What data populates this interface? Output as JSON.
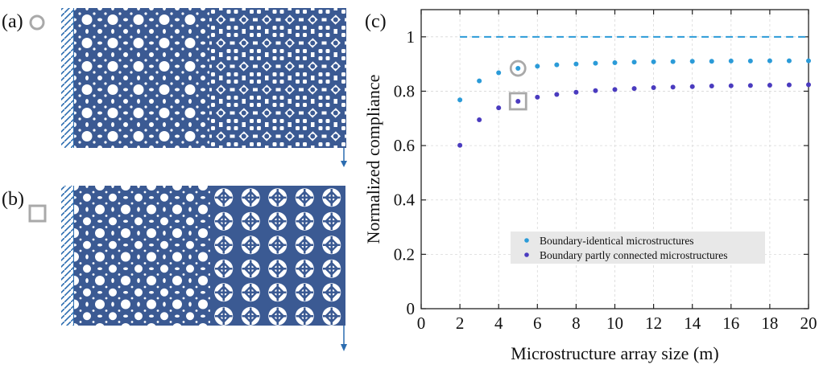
{
  "panels": {
    "a": {
      "label": "(a)",
      "marker": "circle"
    },
    "b": {
      "label": "(b)",
      "marker": "square"
    },
    "c": {
      "label": "(c)"
    }
  },
  "colors": {
    "structure": "#3b5a93",
    "series1": "#2b9bd8",
    "series2": "#4a3bbf",
    "reference": "#2b9bd8",
    "highlight": "#a9a9a9",
    "legend_bg": "#e8e8e8"
  },
  "chart_data": {
    "type": "scatter",
    "xlabel": "Microstructure array size (m)",
    "ylabel": "Normalized compliance",
    "xlim": [
      0,
      20
    ],
    "ylim": [
      0,
      1.1
    ],
    "xticks": [
      0,
      2,
      4,
      6,
      8,
      10,
      12,
      14,
      16,
      18,
      20
    ],
    "yticks": [
      0,
      0.2,
      0.4,
      0.6,
      0.8,
      1
    ],
    "xtick_labels": [
      "0",
      "2",
      "4",
      "6",
      "8",
      "10",
      "12",
      "14",
      "16",
      "18",
      "20"
    ],
    "ytick_labels": [
      "0",
      "0.2",
      "0.4",
      "0.6",
      "0.8",
      "1"
    ],
    "grid": true,
    "legend_position": "lower-right",
    "reference_line": {
      "y": 1.0,
      "x_range": [
        2,
        20
      ],
      "style": "dashed"
    },
    "highlight": {
      "x": 5,
      "circle_series": 0,
      "square_series": 1
    },
    "series": [
      {
        "name": "Boundary-identical microstructures",
        "x": [
          2,
          3,
          4,
          5,
          6,
          7,
          8,
          9,
          10,
          11,
          12,
          13,
          14,
          15,
          16,
          17,
          18,
          19,
          20
        ],
        "values": [
          0.768,
          0.838,
          0.868,
          0.884,
          0.892,
          0.897,
          0.9,
          0.903,
          0.905,
          0.907,
          0.908,
          0.909,
          0.91,
          0.91,
          0.911,
          0.911,
          0.912,
          0.912,
          0.912
        ]
      },
      {
        "name": "Boundary partly connected microstructures",
        "x": [
          2,
          3,
          4,
          5,
          6,
          7,
          8,
          9,
          10,
          11,
          12,
          13,
          14,
          15,
          16,
          17,
          18,
          19,
          20
        ],
        "values": [
          0.601,
          0.695,
          0.739,
          0.763,
          0.778,
          0.788,
          0.796,
          0.802,
          0.806,
          0.81,
          0.813,
          0.815,
          0.817,
          0.819,
          0.82,
          0.821,
          0.822,
          0.823,
          0.824
        ]
      }
    ]
  }
}
